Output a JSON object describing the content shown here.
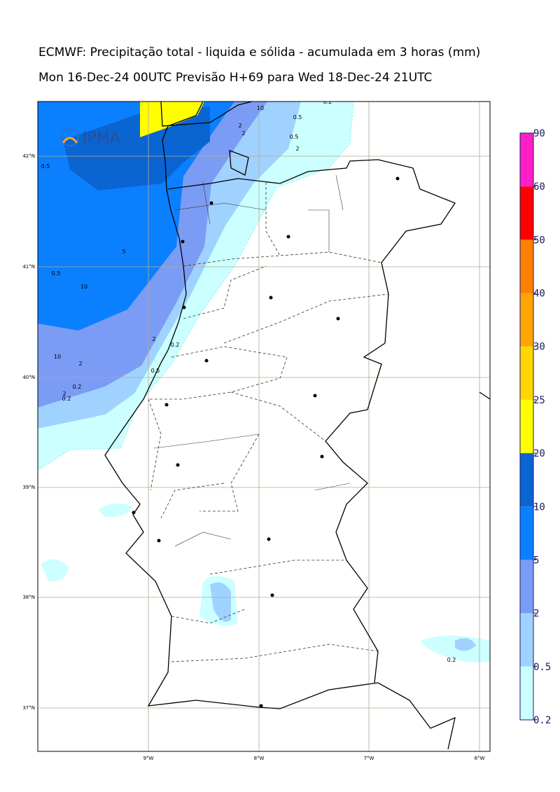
{
  "header": {
    "title": "ECMWF: Precipitação total - liquida e sólida - acumulada em 3 horas (mm)",
    "subtitle": "Mon 16-Dec-24 00UTC Previsão H+69 para Wed 18-Dec-24 21UTC"
  },
  "logo": "IPMA",
  "map": {
    "lat_labels": [
      "42°N",
      "41°N",
      "40°N",
      "39°N",
      "38°N",
      "37°N"
    ],
    "lon_labels": [
      "9°W",
      "8°W",
      "7°W",
      "6°W"
    ],
    "contour_labels": [
      "10",
      "0.5",
      "2",
      "0.2",
      "2",
      "0.5",
      "0.5",
      "5",
      "10",
      "2",
      "2",
      "10",
      "2",
      "0.5",
      "0.2",
      "0.2",
      "0.2",
      "0.5",
      "2",
      "0.2"
    ]
  },
  "colorbar": {
    "levels": [
      0.2,
      0.5,
      2,
      5,
      10,
      20,
      25,
      30,
      40,
      50,
      60,
      90
    ],
    "colors": [
      "#ccffff",
      "#a0d2ff",
      "#7b9cf5",
      "#0a80ff",
      "#0a64d2",
      "#ffff00",
      "#ffd700",
      "#ffa500",
      "#ff7f00",
      "#ff0000",
      "#ff1ec8"
    ]
  }
}
